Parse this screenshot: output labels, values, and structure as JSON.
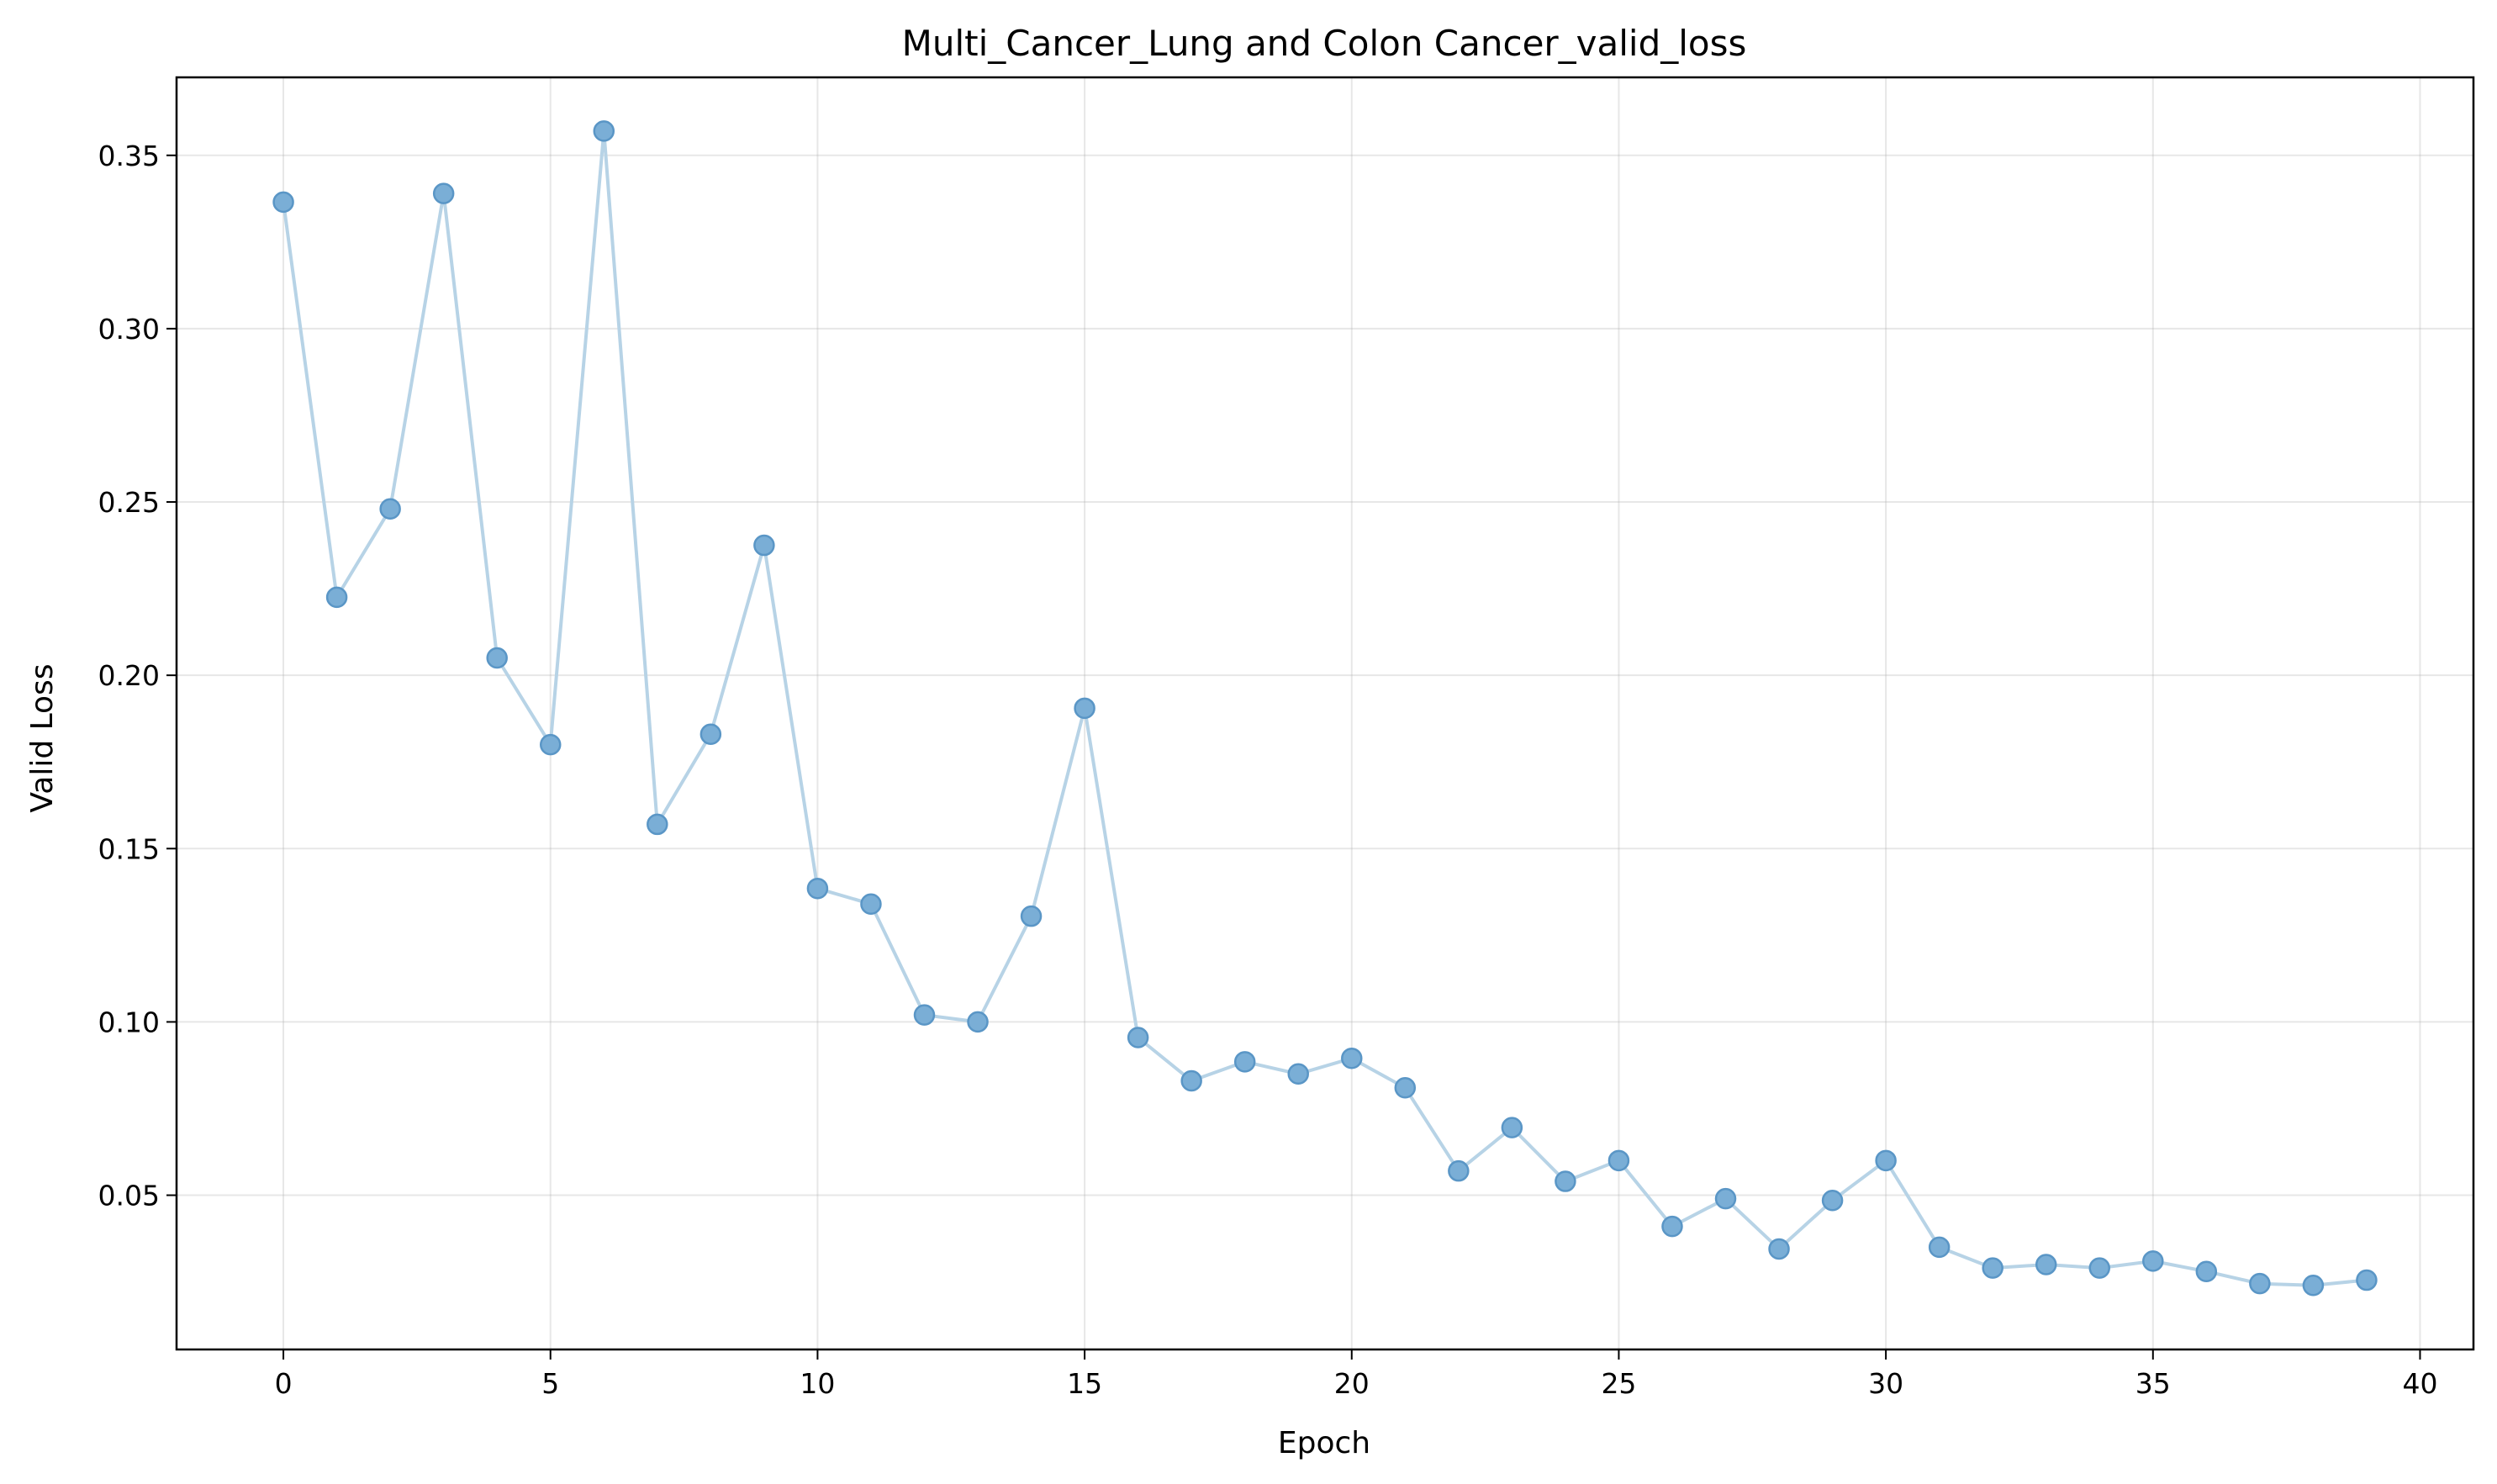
{
  "chart_data": {
    "type": "line",
    "title": "Multi_Cancer_Lung and Colon Cancer_valid_loss",
    "xlabel": "Epoch",
    "ylabel": "Valid Loss",
    "xlim": [
      -2,
      41
    ],
    "ylim": [
      0.0055,
      0.3725
    ],
    "xticks": [
      0,
      5,
      10,
      15,
      20,
      25,
      30,
      35,
      40
    ],
    "yticks": [
      0.05,
      0.1,
      0.15,
      0.2,
      0.25,
      0.3,
      0.35
    ],
    "ytick_labels": [
      "0.05",
      "0.10",
      "0.15",
      "0.20",
      "0.25",
      "0.30",
      "0.35"
    ],
    "grid": true,
    "legend": "none",
    "colors": {
      "line": "#b7d3e6",
      "marker_fill": "#7aaed6",
      "marker_edge": "#5a96c6"
    },
    "series": [
      {
        "x": [
          0,
          1,
          2,
          3,
          4,
          5,
          6,
          7,
          8,
          9,
          10,
          11,
          12,
          13,
          14,
          15,
          16,
          17,
          18,
          19,
          20,
          21,
          22,
          23,
          24,
          25,
          26,
          27,
          28,
          29,
          30,
          31,
          32,
          33,
          34,
          35,
          36,
          37,
          38,
          39
        ],
        "values": [
          0.3365,
          0.2225,
          0.248,
          0.339,
          0.205,
          0.18,
          0.357,
          0.157,
          0.183,
          0.2375,
          0.1385,
          0.134,
          0.102,
          0.1,
          0.1305,
          0.1905,
          0.0955,
          0.083,
          0.0885,
          0.085,
          0.0895,
          0.081,
          0.057,
          0.0695,
          0.054,
          0.06,
          0.041,
          0.049,
          0.0345,
          0.0485,
          0.06,
          0.035,
          0.029,
          0.03,
          0.029,
          0.031,
          0.028,
          0.0245,
          0.024,
          0.0255
        ]
      }
    ]
  }
}
